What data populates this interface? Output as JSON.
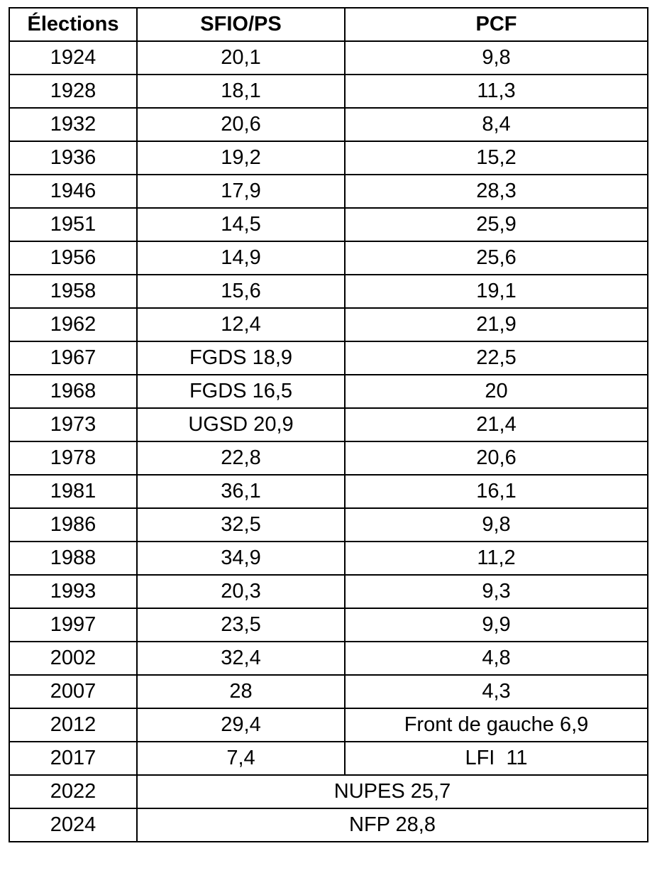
{
  "table": {
    "header": [
      "Élections",
      "SFIO/PS",
      "PCF"
    ],
    "rows": [
      [
        "1924",
        "20,1",
        "9,8"
      ],
      [
        "1928",
        "18,1",
        "11,3"
      ],
      [
        "1932",
        "20,6",
        "8,4"
      ],
      [
        "1936",
        "19,2",
        "15,2"
      ],
      [
        "1946",
        "17,9",
        "28,3"
      ],
      [
        "1951",
        "14,5",
        "25,9"
      ],
      [
        "1956",
        "14,9",
        "25,6"
      ],
      [
        "1958",
        "15,6",
        "19,1"
      ],
      [
        "1962",
        "12,4",
        "21,9"
      ],
      [
        "1967",
        "FGDS 18,9",
        "22,5"
      ],
      [
        "1968",
        "FGDS 16,5",
        "20"
      ],
      [
        "1973",
        "UGSD 20,9",
        "21,4"
      ],
      [
        "1978",
        "22,8",
        "20,6"
      ],
      [
        "1981",
        "36,1",
        "16,1"
      ],
      [
        "1986",
        "32,5",
        "9,8"
      ],
      [
        "1988",
        "34,9",
        "11,2"
      ],
      [
        "1993",
        "20,3",
        "9,3"
      ],
      [
        "1997",
        "23,5",
        "9,9"
      ],
      [
        "2002",
        "32,4",
        "4,8"
      ],
      [
        "2007",
        "28",
        "4,3"
      ],
      [
        "2012",
        "29,4",
        "Front de gauche 6,9"
      ],
      [
        "2017",
        "7,4",
        "LFI  11"
      ],
      [
        "2022",
        "NUPES 25,7"
      ],
      [
        "2024",
        "NFP 28,8"
      ]
    ]
  }
}
